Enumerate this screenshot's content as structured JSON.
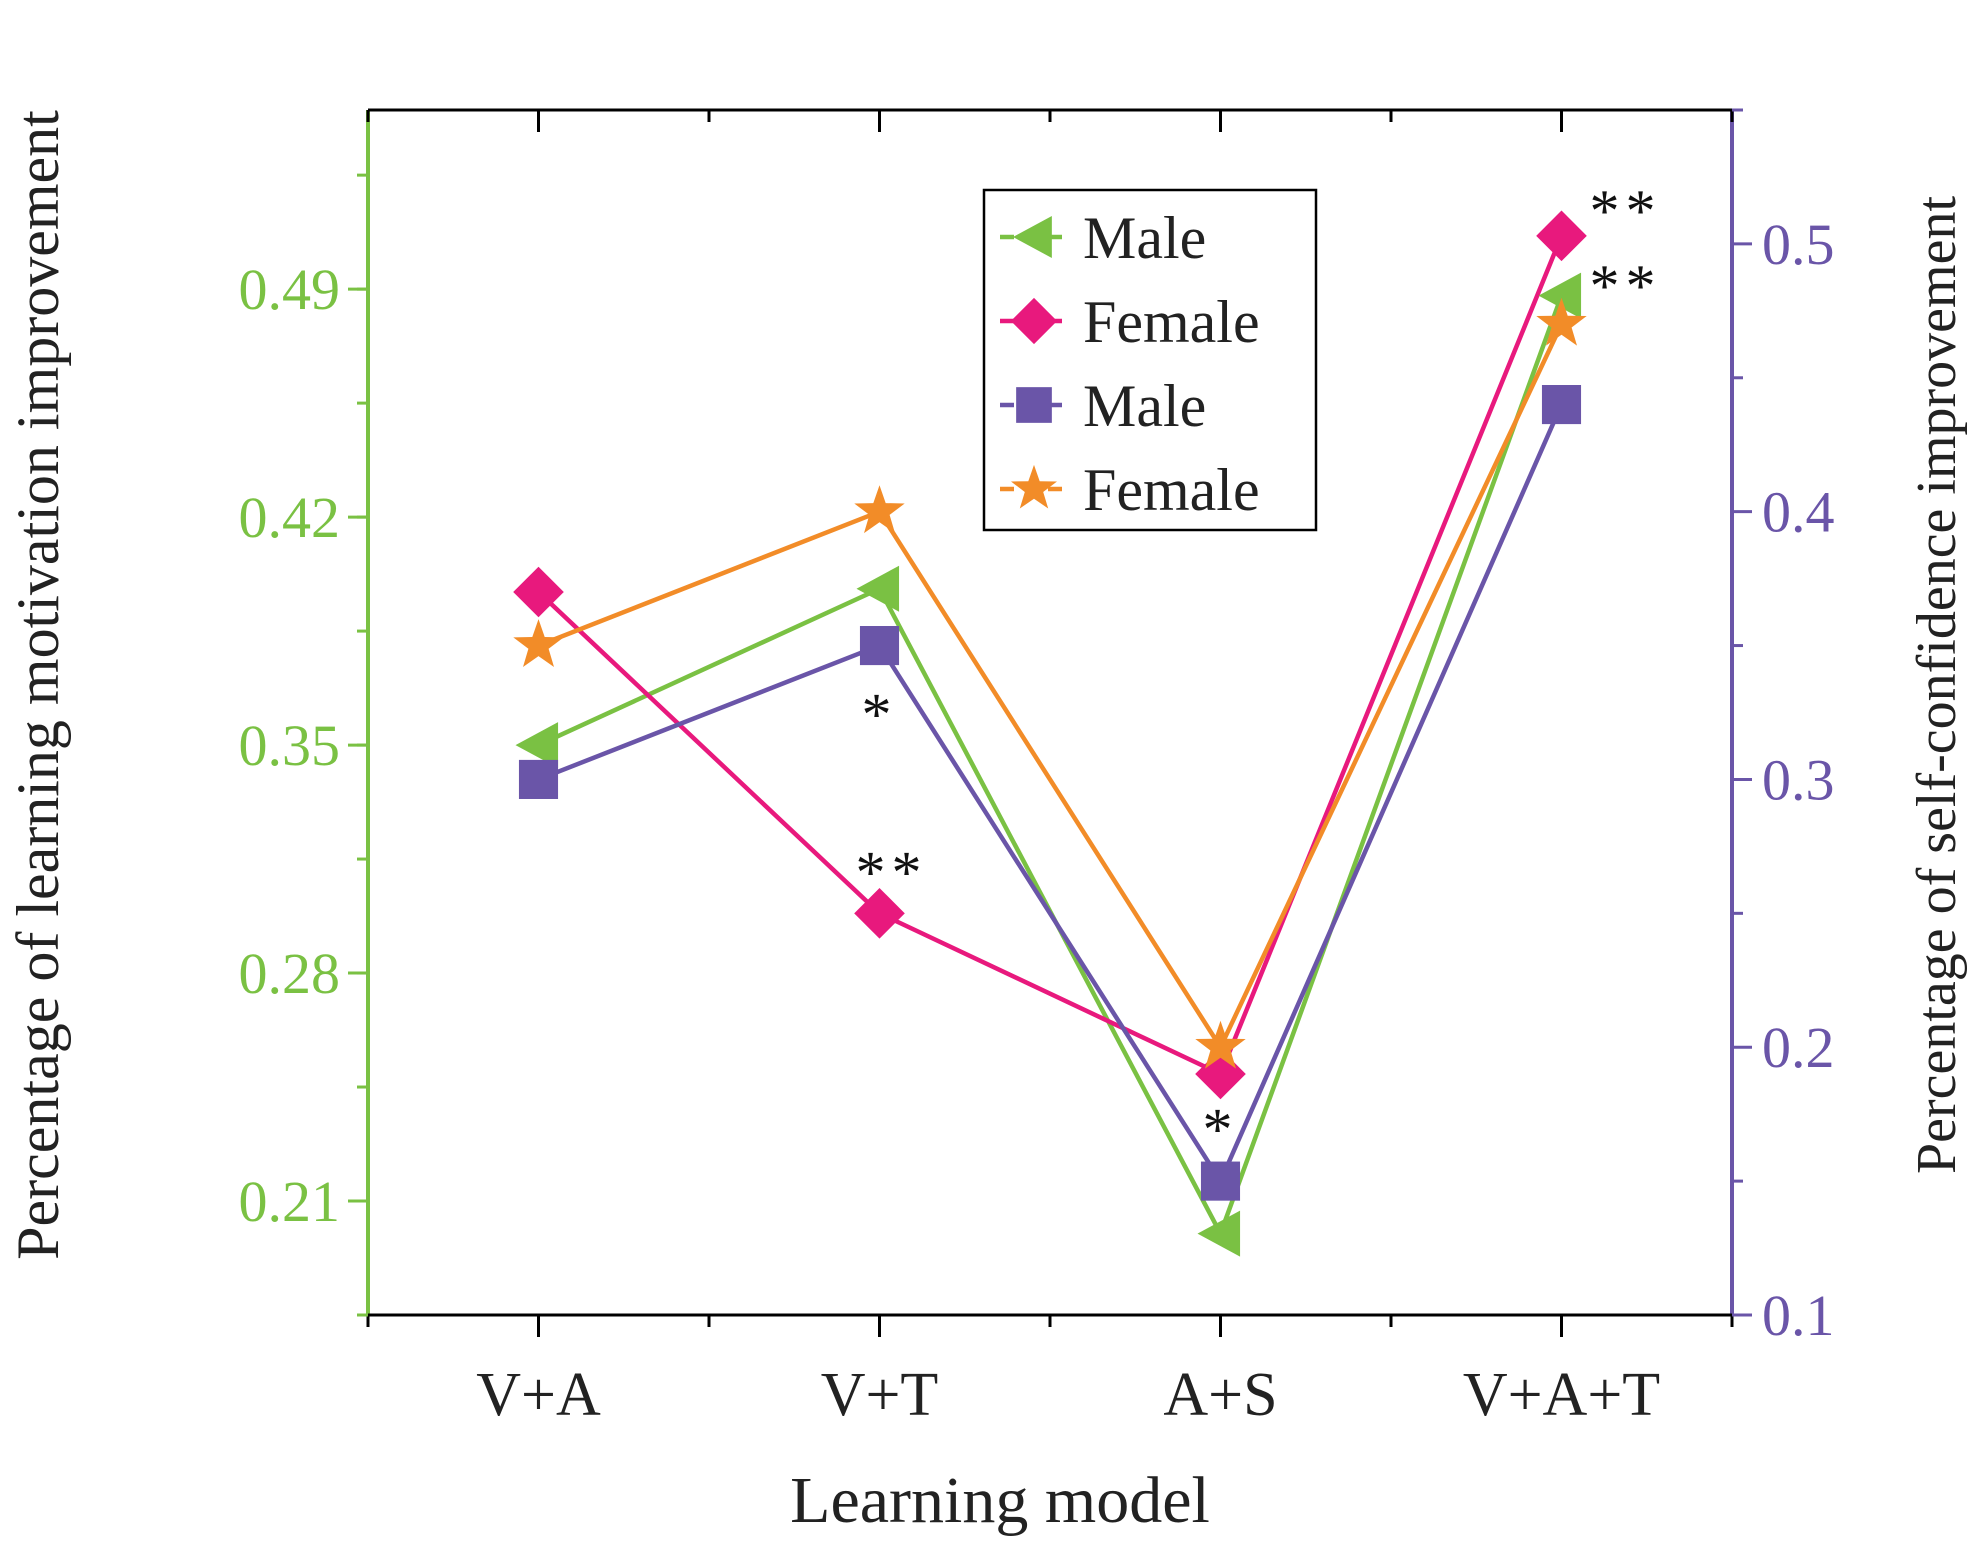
{
  "chart_data": {
    "type": "line",
    "xlabel": "Learning model",
    "ylabel_left": "Percentage of learning motivation improvement",
    "ylabel_right": "Percentage of self-confidence improvement",
    "categories": [
      "V+A",
      "V+T",
      "A+S",
      "V+A+T"
    ],
    "y_left": {
      "range": [
        0.175,
        0.545
      ],
      "ticks": [
        0.21,
        0.28,
        0.35,
        0.42,
        0.49
      ],
      "tick_labels": [
        "0.21",
        "0.28",
        "0.35",
        "0.42",
        "0.49"
      ],
      "color": "#7ac143"
    },
    "y_right": {
      "range": [
        0.1,
        0.55
      ],
      "ticks": [
        0.1,
        0.2,
        0.3,
        0.4,
        0.5
      ],
      "tick_labels": [
        "0.1",
        "0.2",
        "0.3",
        "0.4",
        "0.5"
      ],
      "color": "#6a55a8"
    },
    "series": [
      {
        "name": "Male",
        "axis": "left",
        "marker": "triangle-left",
        "color": "#7ac143",
        "values": [
          0.35,
          0.398,
          0.2,
          0.488
        ]
      },
      {
        "name": "Female",
        "axis": "right",
        "marker": "diamond",
        "color": "#e8197d",
        "values": [
          0.37,
          0.25,
          0.19,
          0.503
        ]
      },
      {
        "name": "Male",
        "axis": "right",
        "marker": "square",
        "color": "#6a55a8",
        "values": [
          0.3,
          0.35,
          0.15,
          0.44
        ]
      },
      {
        "name": "Female",
        "axis": "right",
        "marker": "star",
        "color": "#f28c28",
        "values": [
          0.35,
          0.4,
          0.2,
          0.47
        ]
      }
    ],
    "annotations": [
      {
        "text": "*",
        "category": "V+T",
        "value": 0.325,
        "axis": "right"
      },
      {
        "text": "**",
        "category": "V+T",
        "value": 0.266,
        "axis": "right"
      },
      {
        "text": "*",
        "category": "A+S",
        "value": 0.17,
        "axis": "right"
      },
      {
        "text": "**",
        "category": "V+A+T",
        "value": 0.513,
        "axis": "right"
      },
      {
        "text": "**",
        "category": "V+A+T",
        "value": 0.485,
        "axis": "right"
      }
    ],
    "legend": {
      "position": "top-right",
      "entries": [
        "Male",
        "Female",
        "Male",
        "Female"
      ]
    }
  }
}
